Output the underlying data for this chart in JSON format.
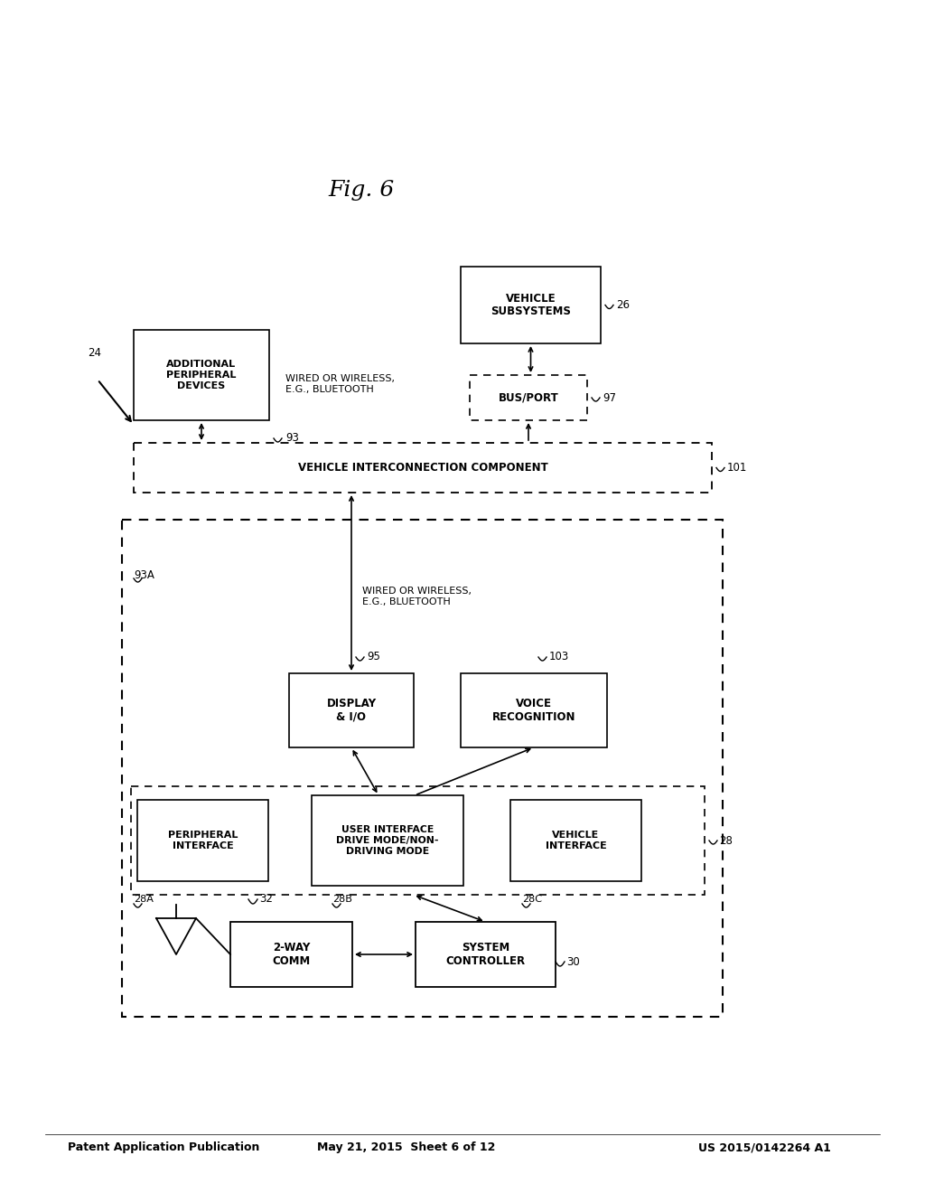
{
  "bg_color": "#ffffff",
  "header_left": "Patent Application Publication",
  "header_center": "May 21, 2015  Sheet 6 of 12",
  "header_right": "US 2015/0142264 A1",
  "fig_label": "Fig. 6"
}
